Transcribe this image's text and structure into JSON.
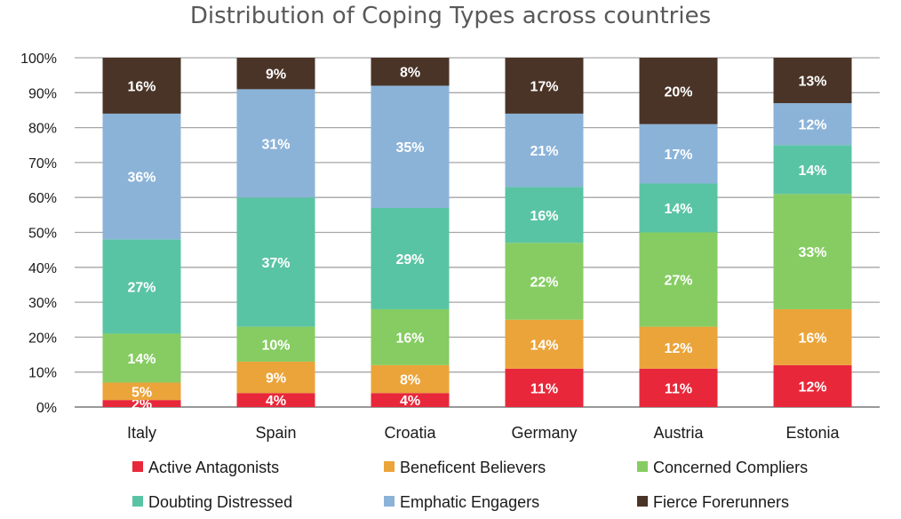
{
  "chart_data": {
    "type": "bar",
    "stacked": true,
    "title": "Distribution of Coping Types across countries",
    "xlabel": "",
    "ylabel": "",
    "ylim": [
      0,
      100
    ],
    "y_ticks": [
      "0%",
      "10%",
      "20%",
      "30%",
      "40%",
      "50%",
      "60%",
      "70%",
      "80%",
      "90%",
      "100%"
    ],
    "grid": true,
    "legend_position": "bottom",
    "categories": [
      "Italy",
      "Spain",
      "Croatia",
      "Germany",
      "Austria",
      "Estonia"
    ],
    "series": [
      {
        "name": "Active Antagonists",
        "color": "#e8283a",
        "values": [
          2,
          4,
          4,
          11,
          11,
          12
        ],
        "labels": [
          "2%",
          "4%",
          "4%",
          "11%",
          "11%",
          "12%"
        ]
      },
      {
        "name": "Beneficent Believers",
        "color": "#eba43a",
        "values": [
          5,
          9,
          8,
          14,
          12,
          16
        ],
        "labels": [
          "5%",
          "9%",
          "8%",
          "14%",
          "12%",
          "16%"
        ]
      },
      {
        "name": "Concerned Compliers",
        "color": "#86cc62",
        "values": [
          14,
          10,
          16,
          22,
          27,
          33
        ],
        "labels": [
          "14%",
          "10%",
          "16%",
          "22%",
          "27%",
          "33%"
        ]
      },
      {
        "name": "Doubting Distressed",
        "color": "#59c4a3",
        "values": [
          27,
          37,
          29,
          16,
          14,
          14
        ],
        "labels": [
          "27%",
          "37%",
          "29%",
          "16%",
          "14%",
          "14%"
        ]
      },
      {
        "name": "Emphatic Engagers",
        "color": "#8bb3d8",
        "values": [
          36,
          31,
          35,
          21,
          17,
          12
        ],
        "labels": [
          "36%",
          "31%",
          "35%",
          "21%",
          "17%",
          "12%"
        ]
      },
      {
        "name": "Fierce Forerunners",
        "color": "#4a3427",
        "values": [
          16,
          9,
          8,
          17,
          20,
          13
        ],
        "labels": [
          "16%",
          "9%",
          "8%",
          "17%",
          "20%",
          "13%"
        ]
      }
    ]
  }
}
